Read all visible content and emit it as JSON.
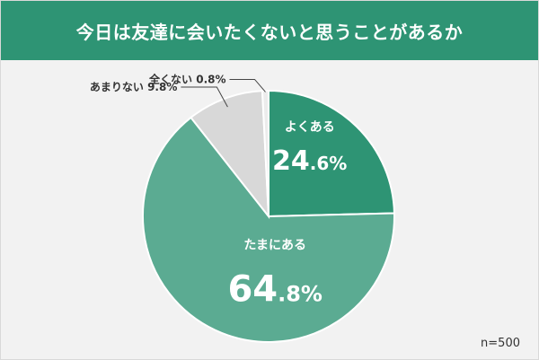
{
  "title": "今日は友達に会いたくないと思うことがあるか",
  "sample_size": "n=500",
  "colors": {
    "header": "#2e9474",
    "often": "#2e9474",
    "sometimes": "#5bab92",
    "rarely": "#d8d8d8",
    "never": "#ececec"
  },
  "chart_data": {
    "type": "pie",
    "start": "12 o'clock, clockwise",
    "slices": [
      {
        "label": "よくある",
        "value_text": "24.6",
        "unit": "%",
        "value": 24.6,
        "color": "#2e9474"
      },
      {
        "label": "たまにある",
        "value_text": "64.8",
        "unit": "%",
        "value": 64.8,
        "color": "#5bab92"
      },
      {
        "label": "あまりない",
        "value_text": "9.8%",
        "value": 9.8,
        "color": "#d8d8d8"
      },
      {
        "label": "全くない",
        "value_text": "0.8%",
        "value": 0.8,
        "color": "#ececec"
      }
    ]
  }
}
